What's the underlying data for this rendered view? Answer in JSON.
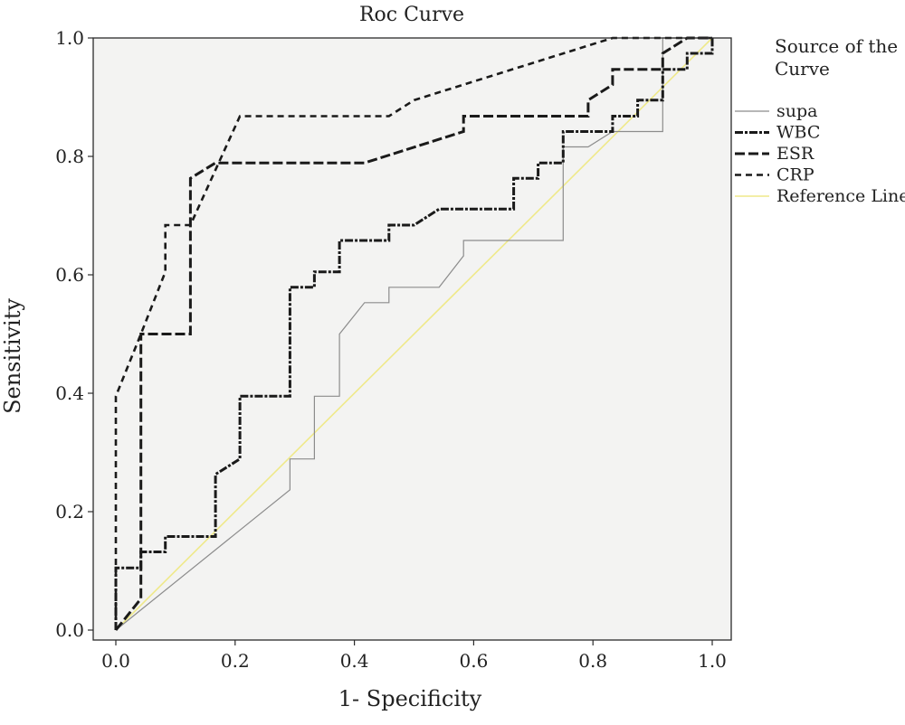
{
  "chart_data": {
    "type": "line",
    "title": "Roc Curve",
    "xlabel": "1- Specificity",
    "ylabel": "Sensitivity",
    "xlim": [
      0,
      1
    ],
    "ylim": [
      0,
      1
    ],
    "xticks": [
      "0.0",
      "0.2",
      "0.4",
      "0.6",
      "0.8",
      "1.0"
    ],
    "yticks": [
      "0.0",
      "0.2",
      "0.4",
      "0.6",
      "0.8",
      "1.0"
    ],
    "legend_title": [
      "Source of the",
      "Curve"
    ],
    "legend_position": "right",
    "plot_background": "#f3f3f2",
    "series": [
      {
        "name": "supa",
        "color": "#8c8c8c",
        "dash": "",
        "width": 1.2,
        "points": [
          [
            0,
            0
          ],
          [
            0.292,
            0.237
          ],
          [
            0.292,
            0.289
          ],
          [
            0.333,
            0.289
          ],
          [
            0.333,
            0.395
          ],
          [
            0.375,
            0.395
          ],
          [
            0.375,
            0.5
          ],
          [
            0.417,
            0.553
          ],
          [
            0.458,
            0.553
          ],
          [
            0.458,
            0.579
          ],
          [
            0.542,
            0.579
          ],
          [
            0.583,
            0.632
          ],
          [
            0.583,
            0.658
          ],
          [
            0.75,
            0.658
          ],
          [
            0.75,
            0.816
          ],
          [
            0.792,
            0.816
          ],
          [
            0.833,
            0.842
          ],
          [
            0.917,
            0.842
          ],
          [
            0.917,
            1.0
          ],
          [
            1,
            1
          ]
        ]
      },
      {
        "name": "WBC",
        "color": "#1a1a1a",
        "dash": "9,2,3,2",
        "width": 3,
        "points": [
          [
            0,
            0
          ],
          [
            0,
            0.105
          ],
          [
            0.042,
            0.105
          ],
          [
            0.042,
            0.132
          ],
          [
            0.083,
            0.132
          ],
          [
            0.083,
            0.158
          ],
          [
            0.167,
            0.158
          ],
          [
            0.167,
            0.263
          ],
          [
            0.208,
            0.289
          ],
          [
            0.208,
            0.395
          ],
          [
            0.292,
            0.395
          ],
          [
            0.292,
            0.579
          ],
          [
            0.333,
            0.579
          ],
          [
            0.333,
            0.605
          ],
          [
            0.375,
            0.605
          ],
          [
            0.375,
            0.658
          ],
          [
            0.458,
            0.658
          ],
          [
            0.458,
            0.684
          ],
          [
            0.5,
            0.684
          ],
          [
            0.542,
            0.711
          ],
          [
            0.667,
            0.711
          ],
          [
            0.667,
            0.763
          ],
          [
            0.708,
            0.763
          ],
          [
            0.708,
            0.789
          ],
          [
            0.75,
            0.789
          ],
          [
            0.75,
            0.842
          ],
          [
            0.833,
            0.842
          ],
          [
            0.833,
            0.868
          ],
          [
            0.875,
            0.868
          ],
          [
            0.875,
            0.895
          ],
          [
            0.917,
            0.895
          ],
          [
            0.917,
            0.947
          ],
          [
            0.958,
            0.947
          ],
          [
            0.958,
            0.974
          ],
          [
            1,
            0.974
          ],
          [
            1,
            1
          ]
        ]
      },
      {
        "name": "ESR",
        "color": "#1a1a1a",
        "dash": "11,4",
        "width": 3,
        "points": [
          [
            0,
            0
          ],
          [
            0.042,
            0.053
          ],
          [
            0.042,
            0.5
          ],
          [
            0.125,
            0.5
          ],
          [
            0.125,
            0.763
          ],
          [
            0.167,
            0.789
          ],
          [
            0.417,
            0.789
          ],
          [
            0.583,
            0.842
          ],
          [
            0.583,
            0.868
          ],
          [
            0.792,
            0.868
          ],
          [
            0.792,
            0.895
          ],
          [
            0.833,
            0.921
          ],
          [
            0.833,
            0.947
          ],
          [
            0.917,
            0.947
          ],
          [
            0.917,
            0.974
          ],
          [
            0.958,
            1.0
          ],
          [
            1,
            1
          ]
        ]
      },
      {
        "name": "CRP",
        "color": "#1a1a1a",
        "dash": "7,5",
        "width": 2.6,
        "points": [
          [
            0,
            0
          ],
          [
            0,
            0.395
          ],
          [
            0.042,
            0.5
          ],
          [
            0.083,
            0.605
          ],
          [
            0.083,
            0.684
          ],
          [
            0.125,
            0.684
          ],
          [
            0.208,
            0.868
          ],
          [
            0.458,
            0.868
          ],
          [
            0.5,
            0.895
          ],
          [
            0.833,
            1.0
          ],
          [
            1,
            1
          ]
        ]
      },
      {
        "name": "Reference Line",
        "color": "#efe98a",
        "dash": "",
        "width": 1.6,
        "points": [
          [
            0,
            0
          ],
          [
            1,
            1
          ]
        ]
      }
    ]
  }
}
